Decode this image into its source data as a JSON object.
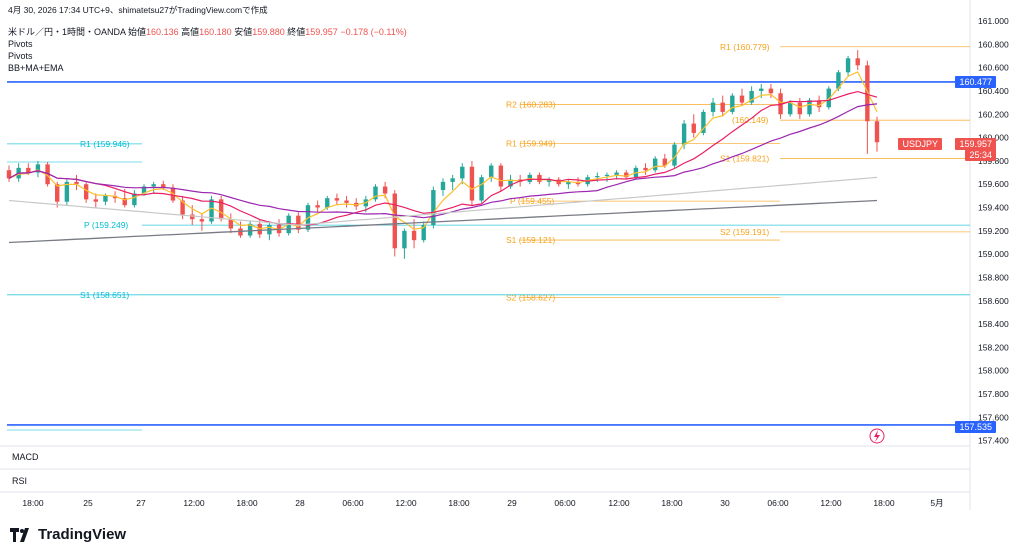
{
  "header": {
    "caption": "4月 30, 2026 17:34 UTC+9、shimatetsu27がTradingView.comで作成",
    "symbol_line": "米ドル／円・1時間・OANDA",
    "open_label": "始値",
    "open": "160.136",
    "high_label": "高値",
    "high": "160.180",
    "low_label": "安値",
    "low": "159.880",
    "close_label": "終値",
    "close": "159.957",
    "change": "−0.178 (−0.11%)",
    "indicators": [
      "Pivots",
      "Pivots",
      "BB+MA+EMA"
    ]
  },
  "panes": {
    "macd": "MACD",
    "rsi": "RSI"
  },
  "brand": "TradingView",
  "price_tags": {
    "upper_line": "160.477",
    "lower_line": "157.535",
    "symbol": "USDJPY",
    "last": "159.957",
    "countdown": "25:34"
  },
  "colors": {
    "up": "#26a69a",
    "down": "#ef5350",
    "blue_line": "#2962ff",
    "pivot_orange": "#f7a21b",
    "pivot_teal": "#00bcd4",
    "bb_pink": "#e91e63",
    "ma_purple": "#9c27b0",
    "ema_yellow": "#fbc02d",
    "ma_gray": "#787b86",
    "ma_light": "#c8c8c8"
  },
  "chart_data": {
    "type": "candlestick",
    "ylim": [
      157.38,
      161.0
    ],
    "yticks": [
      "161.000",
      "160.800",
      "160.600",
      "160.400",
      "160.200",
      "160.000",
      "159.800",
      "159.600",
      "159.400",
      "159.200",
      "159.000",
      "158.800",
      "158.600",
      "158.400",
      "158.200",
      "158.000",
      "157.800",
      "157.600",
      "157.400"
    ],
    "xticks": [
      "18:00",
      "25",
      "27",
      "12:00",
      "18:00",
      "28",
      "06:00",
      "12:00",
      "18:00",
      "29",
      "06:00",
      "12:00",
      "18:00",
      "30",
      "06:00",
      "12:00",
      "18:00",
      "5月"
    ],
    "candles": [
      [
        159.72,
        159.76,
        159.62,
        159.65
      ],
      [
        159.65,
        159.78,
        159.62,
        159.74
      ],
      [
        159.74,
        159.78,
        159.68,
        159.7
      ],
      [
        159.7,
        159.8,
        159.66,
        159.77
      ],
      [
        159.77,
        159.79,
        159.58,
        159.6
      ],
      [
        159.6,
        159.62,
        159.4,
        159.45
      ],
      [
        159.45,
        159.64,
        159.42,
        159.62
      ],
      [
        159.62,
        159.68,
        159.55,
        159.6
      ],
      [
        159.6,
        159.62,
        159.44,
        159.47
      ],
      [
        159.47,
        159.52,
        159.4,
        159.45
      ],
      [
        159.45,
        159.52,
        159.42,
        159.5
      ],
      [
        159.5,
        159.54,
        159.44,
        159.48
      ],
      [
        159.48,
        159.56,
        159.4,
        159.42
      ],
      [
        159.42,
        159.55,
        159.4,
        159.52
      ],
      [
        159.52,
        159.6,
        159.5,
        159.58
      ],
      [
        159.58,
        159.62,
        159.52,
        159.6
      ],
      [
        159.6,
        159.63,
        159.55,
        159.57
      ],
      [
        159.57,
        159.6,
        159.44,
        159.46
      ],
      [
        159.46,
        159.5,
        159.3,
        159.34
      ],
      [
        159.34,
        159.42,
        159.25,
        159.3
      ],
      [
        159.3,
        159.35,
        159.2,
        159.28
      ],
      [
        159.28,
        159.5,
        159.26,
        159.47
      ],
      [
        159.47,
        159.5,
        159.28,
        159.3
      ],
      [
        159.3,
        159.35,
        159.18,
        159.22
      ],
      [
        159.22,
        159.28,
        159.14,
        159.16
      ],
      [
        159.16,
        159.28,
        159.14,
        159.26
      ],
      [
        159.26,
        159.3,
        159.14,
        159.17
      ],
      [
        159.17,
        159.28,
        159.12,
        159.25
      ],
      [
        159.25,
        159.3,
        159.15,
        159.18
      ],
      [
        159.18,
        159.35,
        159.16,
        159.33
      ],
      [
        159.33,
        159.36,
        159.18,
        159.21
      ],
      [
        159.21,
        159.44,
        159.19,
        159.42
      ],
      [
        159.42,
        159.46,
        159.36,
        159.4
      ],
      [
        159.4,
        159.5,
        159.38,
        159.48
      ],
      [
        159.48,
        159.52,
        159.42,
        159.46
      ],
      [
        159.46,
        159.5,
        159.4,
        159.44
      ],
      [
        159.44,
        159.48,
        159.38,
        159.41
      ],
      [
        159.41,
        159.5,
        159.36,
        159.47
      ],
      [
        159.47,
        159.6,
        159.45,
        159.58
      ],
      [
        159.58,
        159.62,
        159.48,
        159.52
      ],
      [
        159.52,
        159.55,
        158.98,
        159.05
      ],
      [
        159.05,
        159.22,
        158.96,
        159.2
      ],
      [
        159.2,
        159.3,
        159.05,
        159.12
      ],
      [
        159.12,
        159.28,
        159.1,
        159.25
      ],
      [
        159.25,
        159.58,
        159.22,
        159.55
      ],
      [
        159.55,
        159.65,
        159.5,
        159.62
      ],
      [
        159.62,
        159.68,
        159.55,
        159.65
      ],
      [
        159.65,
        159.78,
        159.6,
        159.75
      ],
      [
        159.75,
        159.8,
        159.42,
        159.46
      ],
      [
        159.46,
        159.68,
        159.44,
        159.66
      ],
      [
        159.66,
        159.78,
        159.62,
        159.76
      ],
      [
        159.76,
        159.78,
        159.54,
        159.58
      ],
      [
        159.58,
        159.68,
        159.56,
        159.64
      ],
      [
        159.64,
        159.68,
        159.58,
        159.62
      ],
      [
        159.62,
        159.7,
        159.6,
        159.68
      ],
      [
        159.68,
        159.7,
        159.6,
        159.62
      ],
      [
        159.62,
        159.66,
        159.58,
        159.64
      ],
      [
        159.64,
        159.66,
        159.58,
        159.6
      ],
      [
        159.6,
        159.64,
        159.56,
        159.62
      ],
      [
        159.62,
        159.66,
        159.58,
        159.6
      ],
      [
        159.6,
        159.68,
        159.58,
        159.66
      ],
      [
        159.66,
        159.7,
        159.62,
        159.67
      ],
      [
        159.67,
        159.7,
        159.62,
        159.68
      ],
      [
        159.68,
        159.72,
        159.64,
        159.7
      ],
      [
        159.7,
        159.72,
        159.64,
        159.66
      ],
      [
        159.66,
        159.76,
        159.64,
        159.74
      ],
      [
        159.74,
        159.78,
        159.68,
        159.72
      ],
      [
        159.72,
        159.84,
        159.7,
        159.82
      ],
      [
        159.82,
        159.86,
        159.74,
        159.76
      ],
      [
        159.76,
        159.96,
        159.74,
        159.94
      ],
      [
        159.94,
        160.15,
        159.9,
        160.12
      ],
      [
        160.12,
        160.2,
        160.0,
        160.04
      ],
      [
        160.04,
        160.24,
        160.02,
        160.22
      ],
      [
        160.22,
        160.34,
        160.18,
        160.3
      ],
      [
        160.3,
        160.36,
        160.18,
        160.22
      ],
      [
        160.22,
        160.38,
        160.2,
        160.36
      ],
      [
        160.36,
        160.42,
        160.28,
        160.3
      ],
      [
        160.3,
        160.44,
        160.28,
        160.4
      ],
      [
        160.4,
        160.46,
        160.34,
        160.42
      ],
      [
        160.42,
        160.46,
        160.34,
        160.38
      ],
      [
        160.38,
        160.42,
        160.16,
        160.2
      ],
      [
        160.2,
        160.32,
        160.18,
        160.3
      ],
      [
        160.3,
        160.34,
        160.16,
        160.2
      ],
      [
        160.2,
        160.34,
        160.18,
        160.32
      ],
      [
        160.32,
        160.36,
        160.22,
        160.26
      ],
      [
        160.26,
        160.44,
        160.24,
        160.42
      ],
      [
        160.42,
        160.58,
        160.4,
        160.56
      ],
      [
        160.56,
        160.7,
        160.52,
        160.68
      ],
      [
        160.68,
        160.75,
        160.58,
        160.62
      ],
      [
        160.62,
        160.66,
        159.86,
        160.14
      ],
      [
        160.14,
        160.18,
        159.88,
        159.96
      ]
    ],
    "pivot_levels": [
      {
        "label": "R1 (160.779)",
        "value": 160.779,
        "group": "orange"
      },
      {
        "label": "R2 (160.283)",
        "value": 160.283,
        "group": "orange"
      },
      {
        "label": "R1 (159.949)",
        "value": 159.949,
        "group": "orange"
      },
      {
        "label": "S1 (159.821)",
        "value": 159.821,
        "group": "orange"
      },
      {
        "label": "P (159.455)",
        "value": 159.455,
        "group": "orange"
      },
      {
        "label": "S1 (159.121)",
        "value": 159.121,
        "group": "orange"
      },
      {
        "label": "S2 (159.191)",
        "value": 159.191,
        "group": "orange"
      },
      {
        "label": "S2 (158.627)",
        "value": 158.627,
        "group": "orange"
      },
      {
        "label": "(160.149)",
        "value": 160.149,
        "group": "orange"
      },
      {
        "label": "R1 (159.946)",
        "value": 159.946,
        "group": "teal"
      },
      {
        "label": "P (159.249)",
        "value": 159.249,
        "group": "teal"
      },
      {
        "label": "S1 (158.651)",
        "value": 158.651,
        "group": "teal"
      }
    ],
    "horizontal_lines": [
      160.477,
      157.535
    ]
  }
}
